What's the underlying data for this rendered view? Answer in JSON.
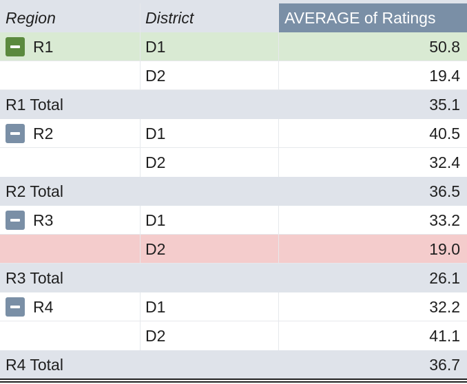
{
  "header": {
    "region": "Region",
    "district": "District",
    "value": "AVERAGE of Ratings"
  },
  "rows": [
    {
      "region": "R1",
      "district": "D1",
      "value": "50.8",
      "toggle": "collapse-icon"
    },
    {
      "region": "",
      "district": "D2",
      "value": "19.4"
    },
    {
      "total_label": "R1 Total",
      "value": "35.1"
    },
    {
      "region": "R2",
      "district": "D1",
      "value": "40.5",
      "toggle": "collapse-icon"
    },
    {
      "region": "",
      "district": "D2",
      "value": "32.4"
    },
    {
      "total_label": "R2 Total",
      "value": "36.5"
    },
    {
      "region": "R3",
      "district": "D1",
      "value": "33.2",
      "toggle": "collapse-icon"
    },
    {
      "region": "",
      "district": "D2",
      "value": "19.0"
    },
    {
      "total_label": "R3 Total",
      "value": "26.1"
    },
    {
      "region": "R4",
      "district": "D1",
      "value": "32.2",
      "toggle": "collapse-icon"
    },
    {
      "region": "",
      "district": "D2",
      "value": "41.1"
    },
    {
      "total_label": "R4 Total",
      "value": "36.7"
    }
  ],
  "colors": {
    "header_accent": "#7a8fa6",
    "highlight_green": "#d9ead3",
    "highlight_red": "#f4cccc",
    "total_row": "#dfe3ea"
  }
}
